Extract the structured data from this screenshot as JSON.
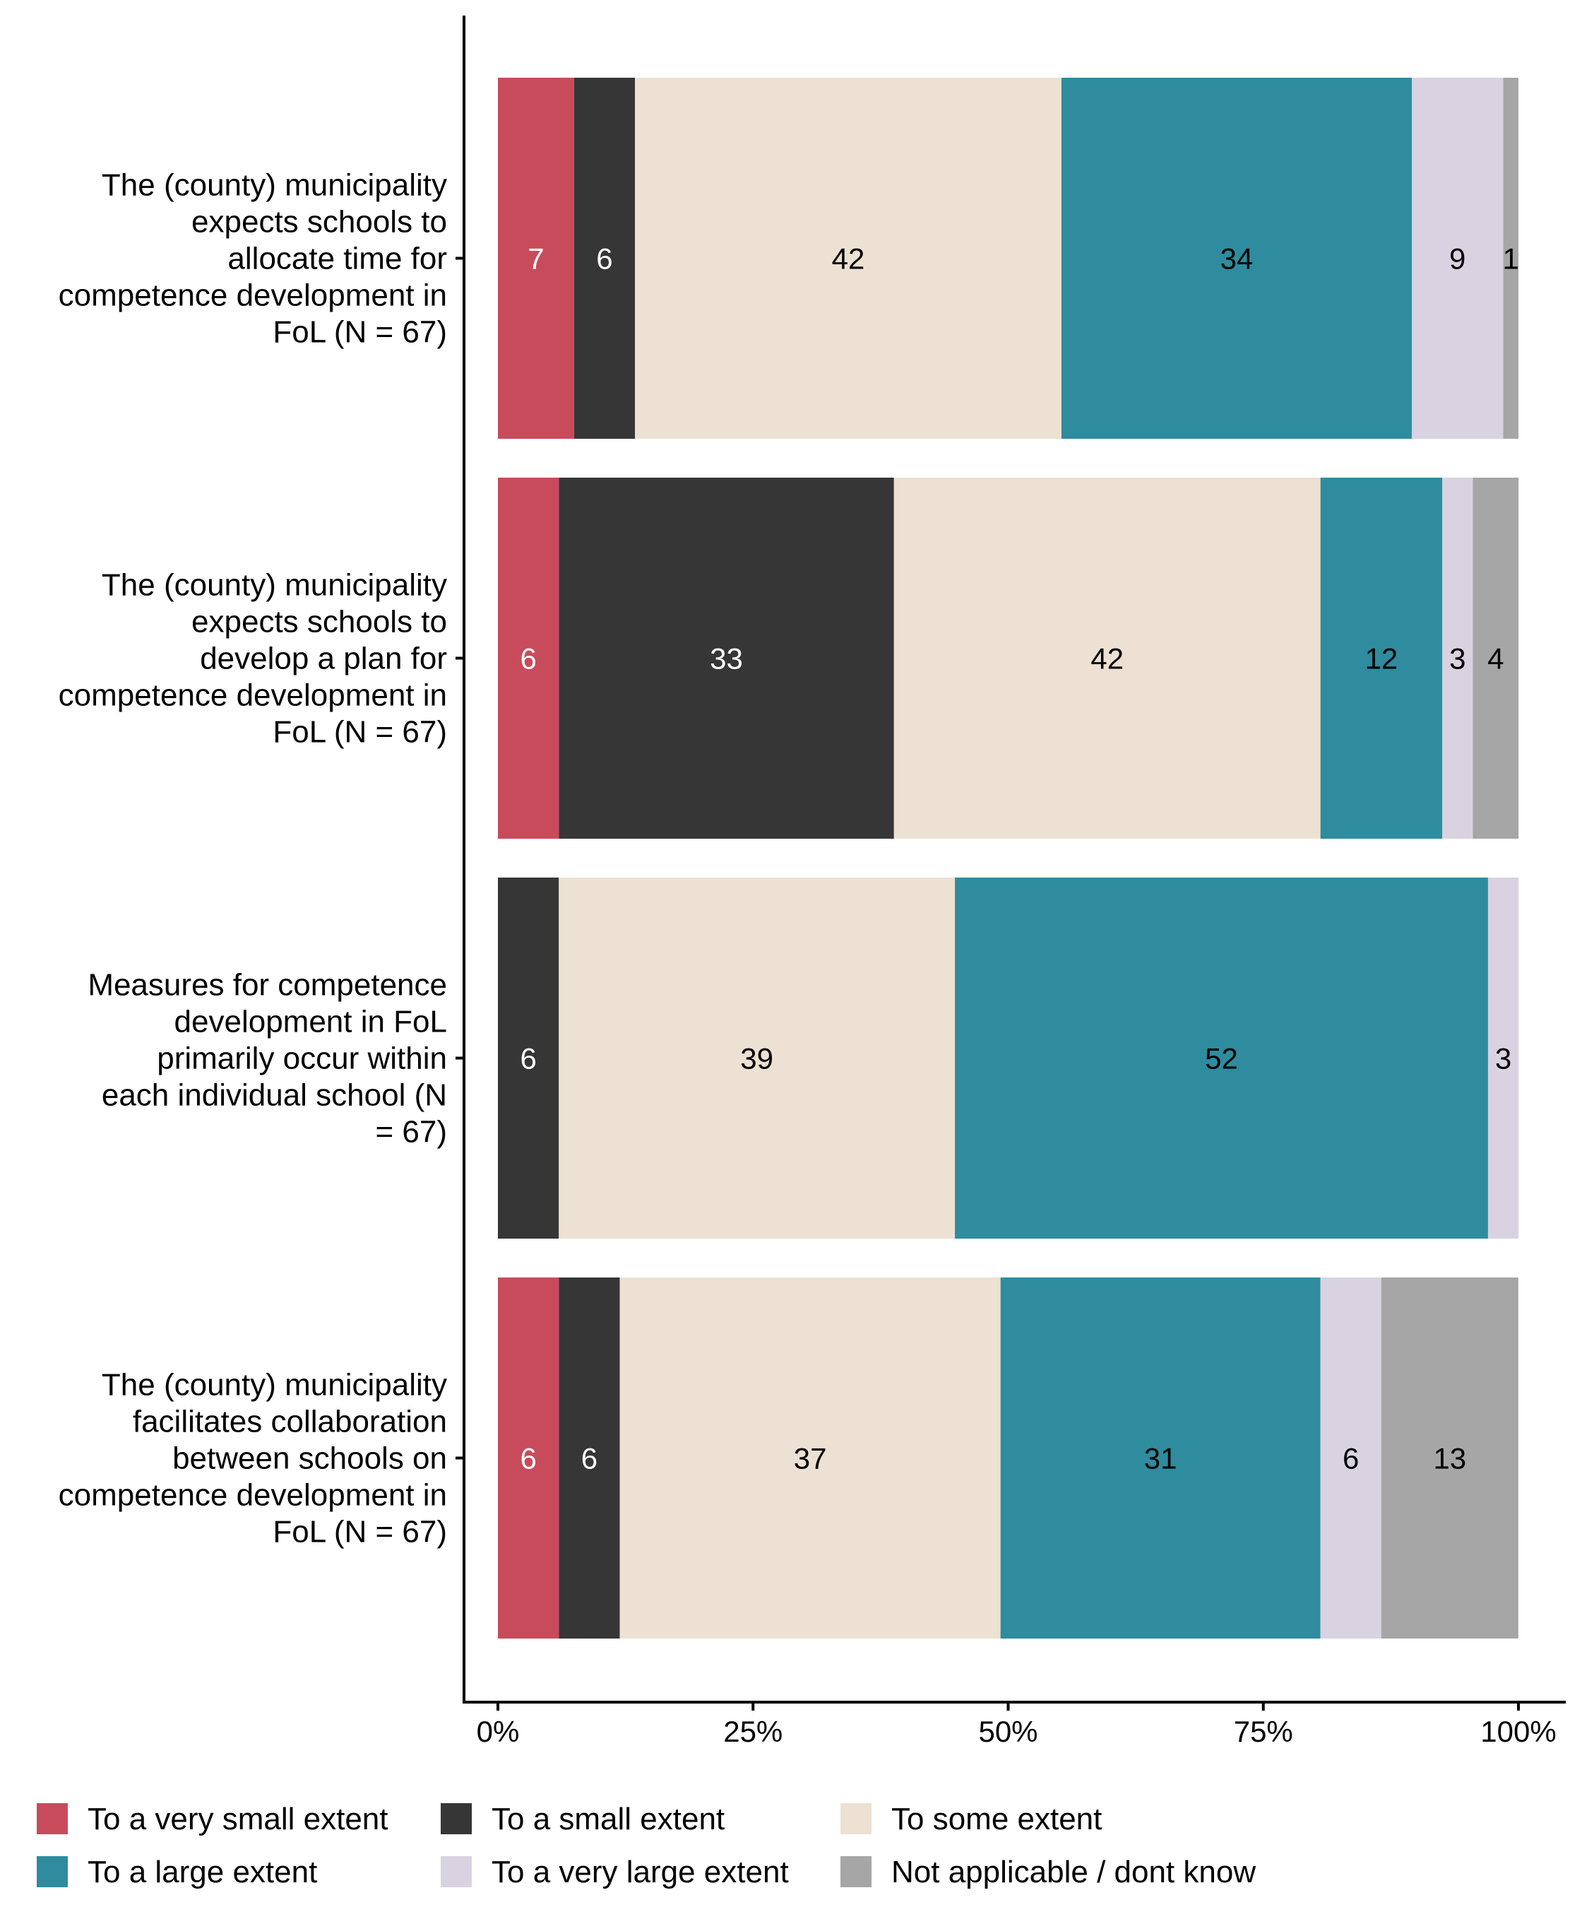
{
  "chart_data": {
    "type": "bar",
    "orientation": "horizontal",
    "stacked": "percent",
    "title": "",
    "xlabel": "",
    "ylabel": "",
    "xlim": [
      0,
      100
    ],
    "x_ticks": [
      "0%",
      "25%",
      "50%",
      "75%",
      "100%"
    ],
    "x_tick_values": [
      0,
      25,
      50,
      75,
      100
    ],
    "grid": false,
    "legend_position": "bottom",
    "categories": [
      [
        "The (county) municipality",
        "expects schools to",
        "allocate time for",
        "competence development in",
        "FoL (N = 67)"
      ],
      [
        "The (county) municipality",
        "expects schools to",
        "develop a plan for",
        "competence development in",
        "FoL (N = 67)"
      ],
      [
        "Measures for competence",
        "development in FoL",
        "primarily occur within",
        "each individual school (N",
        "= 67)"
      ],
      [
        "The (county) municipality",
        "facilitates collaboration",
        "between schools on",
        "competence development in",
        "FoL (N = 67)"
      ]
    ],
    "series": [
      {
        "name": "To a very small extent",
        "color": "#C84B5B",
        "label_color": "#ffffff",
        "values": [
          7.46,
          5.97,
          0,
          5.97
        ],
        "labels": [
          "7",
          "6",
          "",
          "6"
        ]
      },
      {
        "name": "To a small extent",
        "color": "#363636",
        "label_color": "#ffffff",
        "values": [
          5.97,
          32.84,
          5.97,
          5.97
        ],
        "labels": [
          "6",
          "33",
          "6",
          "6"
        ]
      },
      {
        "name": "To some extent",
        "color": "#ECE1D2",
        "label_color": "#000000",
        "values": [
          41.79,
          41.79,
          38.81,
          37.31
        ],
        "labels": [
          "42",
          "42",
          "39",
          "37"
        ]
      },
      {
        "name": "To a large extent",
        "color": "#2E8C9E",
        "label_color": "#000000",
        "values": [
          34.33,
          11.94,
          52.24,
          31.34
        ],
        "labels": [
          "34",
          "12",
          "52",
          "31"
        ]
      },
      {
        "name": "To a very large extent",
        "color": "#D9D2E0",
        "label_color": "#000000",
        "values": [
          8.96,
          2.99,
          2.99,
          5.97
        ],
        "labels": [
          "9",
          "3",
          "3",
          "6"
        ]
      },
      {
        "name": "Not applicable / dont know",
        "color": "#A6A6A6",
        "label_color": "#000000",
        "values": [
          1.49,
          4.48,
          0,
          13.43
        ],
        "labels": [
          "1",
          "4",
          "",
          "13"
        ]
      }
    ],
    "legend": [
      [
        "To a very small extent",
        "To a small extent",
        "To some extent"
      ],
      [
        "To a large extent",
        "To a very large extent",
        "Not applicable / dont know"
      ]
    ]
  }
}
